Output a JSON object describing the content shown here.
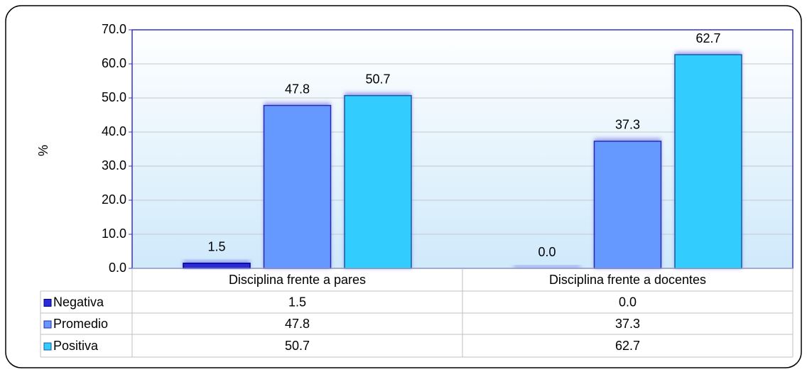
{
  "chart_data": {
    "type": "bar",
    "y_label": "%",
    "categories": [
      "Disciplina frente a pares",
      "Disciplina frente a docentes"
    ],
    "series": [
      {
        "name": "Negativa",
        "color": "#2a2ad8",
        "values": [
          1.5,
          0
        ],
        "value_labels": [
          "1.5",
          "0.0"
        ]
      },
      {
        "name": "Promedio",
        "color": "#6699ff",
        "values": [
          47.8,
          37.3
        ],
        "value_labels": [
          "47.8",
          "37.3"
        ]
      },
      {
        "name": "Positiva",
        "color": "#33ccff",
        "values": [
          50.7,
          62.7
        ],
        "value_labels": [
          "50.7",
          "62.7"
        ]
      }
    ],
    "ylim": [
      0,
      70
    ],
    "yticks": [
      {
        "value": 0,
        "label": "0.0"
      },
      {
        "value": 10,
        "label": "10.0"
      },
      {
        "value": 20,
        "label": "20.0"
      },
      {
        "value": 30,
        "label": "30.0"
      },
      {
        "value": 40,
        "label": "40.0"
      },
      {
        "value": 50,
        "label": "50.0"
      },
      {
        "value": 60,
        "label": "60.0"
      },
      {
        "value": 70,
        "label": "70.0"
      }
    ],
    "grid": true,
    "data_table": true
  }
}
